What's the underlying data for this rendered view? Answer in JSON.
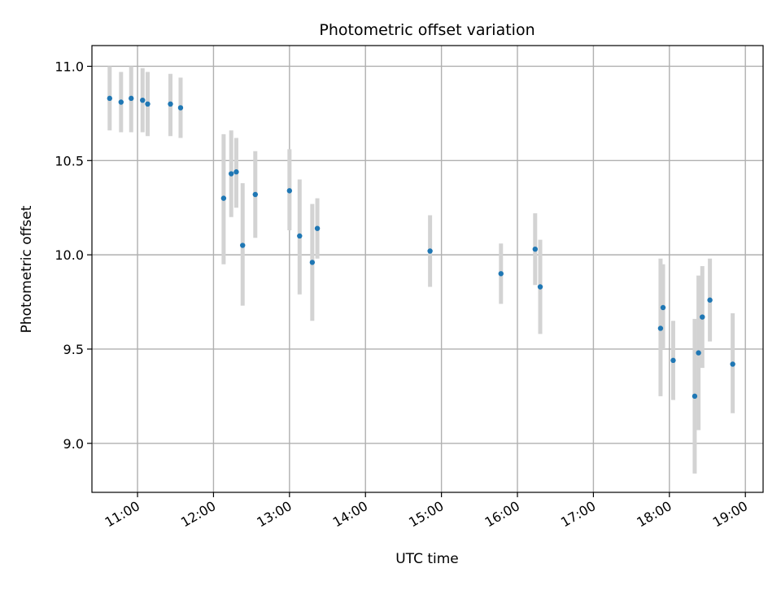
{
  "chart_data": {
    "type": "scatter",
    "title": "Photometric offset variation",
    "xlabel": "UTC time",
    "ylabel": "Photometric offset",
    "xlim": [
      "10:24",
      "19:14"
    ],
    "ylim": [
      8.74,
      11.11
    ],
    "x_ticks": [
      "11:00",
      "12:00",
      "13:00",
      "14:00",
      "15:00",
      "16:00",
      "17:00",
      "18:00",
      "19:00"
    ],
    "y_ticks": [
      "9.0",
      "9.5",
      "10.0",
      "10.5",
      "11.0"
    ],
    "grid": true,
    "marker_color": "#1f77b4",
    "errorbar_color": "#d3d3d3",
    "points": [
      {
        "x": "10:38",
        "y": 10.83,
        "ylo": 10.66,
        "yhi": 11.0
      },
      {
        "x": "10:47",
        "y": 10.81,
        "ylo": 10.65,
        "yhi": 10.97
      },
      {
        "x": "10:55",
        "y": 10.83,
        "ylo": 10.65,
        "yhi": 11.0
      },
      {
        "x": "11:04",
        "y": 10.82,
        "ylo": 10.65,
        "yhi": 10.99
      },
      {
        "x": "11:08",
        "y": 10.8,
        "ylo": 10.63,
        "yhi": 10.97
      },
      {
        "x": "11:26",
        "y": 10.8,
        "ylo": 10.63,
        "yhi": 10.96
      },
      {
        "x": "11:34",
        "y": 10.78,
        "ylo": 10.62,
        "yhi": 10.94
      },
      {
        "x": "12:08",
        "y": 10.3,
        "ylo": 9.95,
        "yhi": 10.64
      },
      {
        "x": "12:14",
        "y": 10.43,
        "ylo": 10.2,
        "yhi": 10.66
      },
      {
        "x": "12:18",
        "y": 10.44,
        "ylo": 10.25,
        "yhi": 10.62
      },
      {
        "x": "12:23",
        "y": 10.05,
        "ylo": 9.73,
        "yhi": 10.38
      },
      {
        "x": "12:33",
        "y": 10.32,
        "ylo": 10.09,
        "yhi": 10.55
      },
      {
        "x": "13:00",
        "y": 10.34,
        "ylo": 10.13,
        "yhi": 10.56
      },
      {
        "x": "13:08",
        "y": 10.1,
        "ylo": 9.79,
        "yhi": 10.4
      },
      {
        "x": "13:18",
        "y": 9.96,
        "ylo": 9.65,
        "yhi": 10.27
      },
      {
        "x": "13:22",
        "y": 10.14,
        "ylo": 9.98,
        "yhi": 10.3
      },
      {
        "x": "14:51",
        "y": 10.02,
        "ylo": 9.83,
        "yhi": 10.21
      },
      {
        "x": "15:47",
        "y": 9.9,
        "ylo": 9.74,
        "yhi": 10.06
      },
      {
        "x": "16:14",
        "y": 10.03,
        "ylo": 9.84,
        "yhi": 10.22
      },
      {
        "x": "16:18",
        "y": 9.83,
        "ylo": 9.58,
        "yhi": 10.08
      },
      {
        "x": "17:53",
        "y": 9.61,
        "ylo": 9.25,
        "yhi": 9.98
      },
      {
        "x": "17:55",
        "y": 9.72,
        "ylo": 9.5,
        "yhi": 9.95
      },
      {
        "x": "18:03",
        "y": 9.44,
        "ylo": 9.23,
        "yhi": 9.65
      },
      {
        "x": "18:20",
        "y": 9.25,
        "ylo": 8.84,
        "yhi": 9.66
      },
      {
        "x": "18:23",
        "y": 9.48,
        "ylo": 9.07,
        "yhi": 9.89
      },
      {
        "x": "18:26",
        "y": 9.67,
        "ylo": 9.4,
        "yhi": 9.94
      },
      {
        "x": "18:32",
        "y": 9.76,
        "ylo": 9.54,
        "yhi": 9.98
      },
      {
        "x": "18:50",
        "y": 9.42,
        "ylo": 9.16,
        "yhi": 9.69
      }
    ]
  }
}
